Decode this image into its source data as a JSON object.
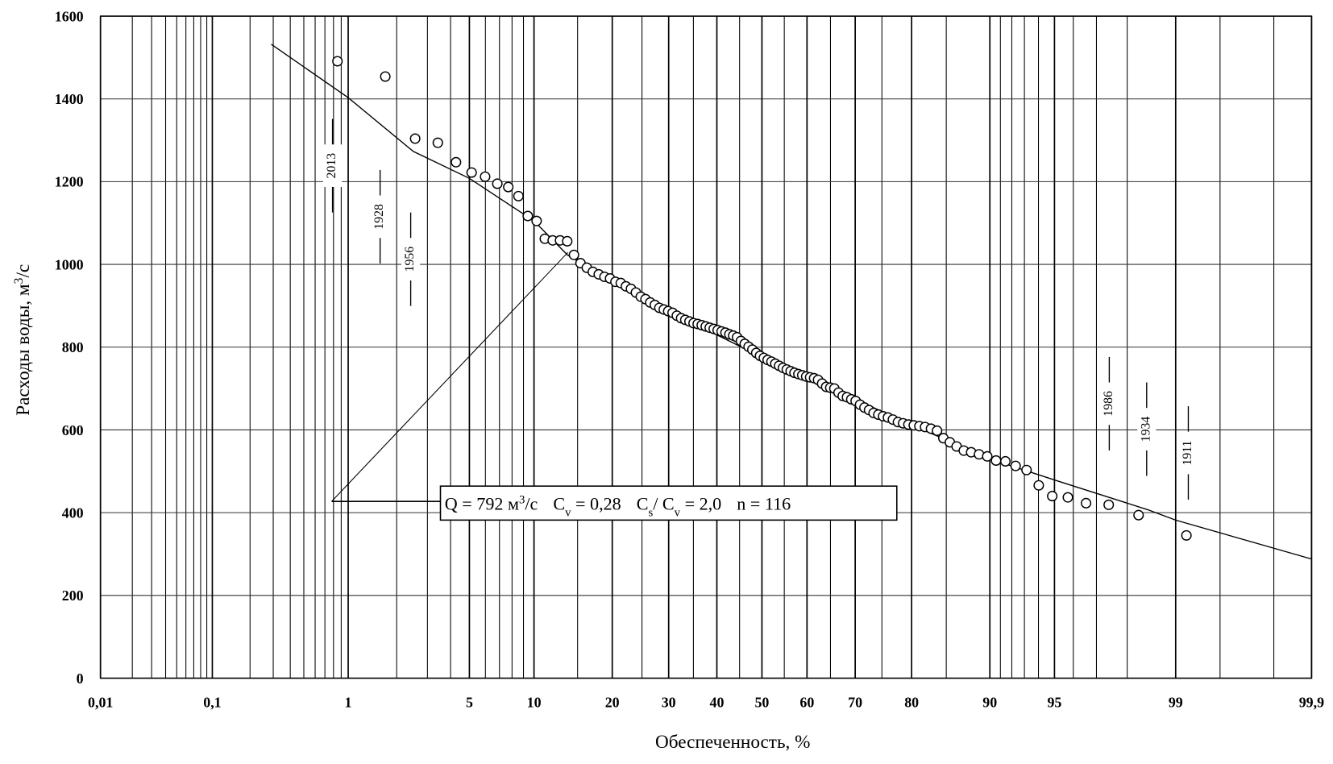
{
  "chart_data": {
    "type": "scatter",
    "xscale": "probability",
    "x_label": "Обеспеченность, %",
    "y_label": [
      "Расходы  воды, м",
      "3",
      "/с"
    ],
    "xlim": [
      0.01,
      99.9
    ],
    "ylim": [
      0,
      1600
    ],
    "xticks": [
      {
        "value": 0.01,
        "label": "0,01"
      },
      {
        "value": 0.1,
        "label": "0,1"
      },
      1,
      5,
      10,
      20,
      30,
      40,
      50,
      60,
      70,
      80,
      90,
      95,
      99,
      {
        "value": 99.9,
        "label": "99,9"
      }
    ],
    "xgrid_minor": [
      0.02,
      0.03,
      0.04,
      0.05,
      0.06,
      0.07,
      0.08,
      0.09,
      0.2,
      0.3,
      0.4,
      0.5,
      0.6,
      0.7,
      0.8,
      0.9,
      2,
      3,
      4,
      6,
      7,
      8,
      9,
      15,
      25,
      35,
      45,
      55,
      65,
      75,
      85,
      91,
      92,
      93,
      94,
      96,
      97,
      98,
      99.5,
      99.8
    ],
    "yticks": [
      0,
      200,
      400,
      600,
      800,
      1000,
      1200,
      1400,
      1600
    ],
    "grid": true,
    "color": "#000000",
    "observed": {
      "x": [
        0.85,
        1.71,
        2.56,
        3.42,
        4.27,
        5.13,
        5.98,
        6.84,
        7.69,
        8.55,
        9.4,
        10.26,
        11.11,
        11.97,
        12.82,
        13.68,
        14.53,
        15.38,
        16.24,
        17.09,
        17.95,
        18.8,
        19.66,
        20.51,
        21.37,
        22.22,
        23.08,
        23.93,
        24.79,
        25.64,
        26.5,
        27.35,
        28.21,
        29.06,
        29.91,
        30.77,
        31.62,
        32.48,
        33.33,
        34.19,
        35.04,
        35.9,
        36.75,
        37.61,
        38.46,
        39.32,
        40.17,
        41.03,
        41.88,
        42.74,
        43.59,
        44.44,
        45.3,
        46.15,
        47.01,
        47.86,
        48.72,
        49.57,
        50.43,
        51.28,
        52.14,
        52.99,
        53.85,
        54.7,
        55.56,
        56.41,
        57.26,
        58.12,
        58.97,
        59.83,
        60.68,
        61.54,
        62.39,
        63.25,
        64.1,
        64.96,
        65.81,
        66.67,
        67.52,
        68.38,
        69.23,
        70.09,
        70.94,
        71.79,
        72.65,
        73.5,
        74.36,
        75.21,
        76.07,
        76.92,
        77.78,
        78.63,
        79.49,
        80.34,
        81.2,
        82.05,
        82.91,
        83.76,
        84.62,
        85.47,
        86.32,
        87.18,
        88.03,
        88.89,
        89.74,
        90.6,
        91.45,
        92.31,
        93.16,
        94.02,
        94.87,
        95.73,
        96.58,
        97.44,
        98.29,
        99.15
      ],
      "y": [
        1491,
        1454,
        1304,
        1294,
        1247,
        1222,
        1212,
        1195,
        1187,
        1165,
        1117,
        1105,
        1062,
        1058,
        1058,
        1056,
        1023,
        1003,
        992,
        982,
        976,
        970,
        966,
        958,
        955,
        947,
        941,
        932,
        922,
        916,
        908,
        902,
        895,
        891,
        887,
        883,
        876,
        870,
        866,
        862,
        858,
        856,
        853,
        850,
        847,
        844,
        841,
        838,
        835,
        831,
        828,
        824,
        815,
        808,
        801,
        794,
        786,
        779,
        774,
        769,
        765,
        760,
        755,
        750,
        746,
        742,
        738,
        735,
        732,
        729,
        727,
        725,
        721,
        712,
        704,
        702,
        700,
        690,
        682,
        679,
        674,
        670,
        661,
        654,
        648,
        641,
        637,
        633,
        630,
        625,
        619,
        616,
        613,
        611,
        609,
        607,
        603,
        598,
        580,
        570,
        560,
        550,
        546,
        541,
        536,
        526,
        524,
        513,
        503,
        466,
        440,
        437,
        423,
        419,
        394,
        345
      ]
    },
    "fit_curve": {
      "x": [
        0.29,
        1,
        2.5,
        5,
        10,
        13.7,
        20,
        30,
        50,
        70,
        80,
        90,
        95,
        98.5,
        99,
        99.9
      ],
      "y": [
        1532,
        1403,
        1273,
        1208,
        1105,
        1023,
        961,
        887,
        776,
        674,
        612,
        530,
        479,
        407,
        382,
        288
      ]
    },
    "year_labels": [
      "2013",
      "1928",
      "1956",
      "1986",
      "1934",
      "1911"
    ],
    "stats_box": [
      "Q = 792 м",
      "3",
      "/с",
      "C",
      "v",
      " = 0,28",
      "C",
      "s",
      "/ C",
      "v",
      " = 2,0",
      "n = 116"
    ]
  }
}
